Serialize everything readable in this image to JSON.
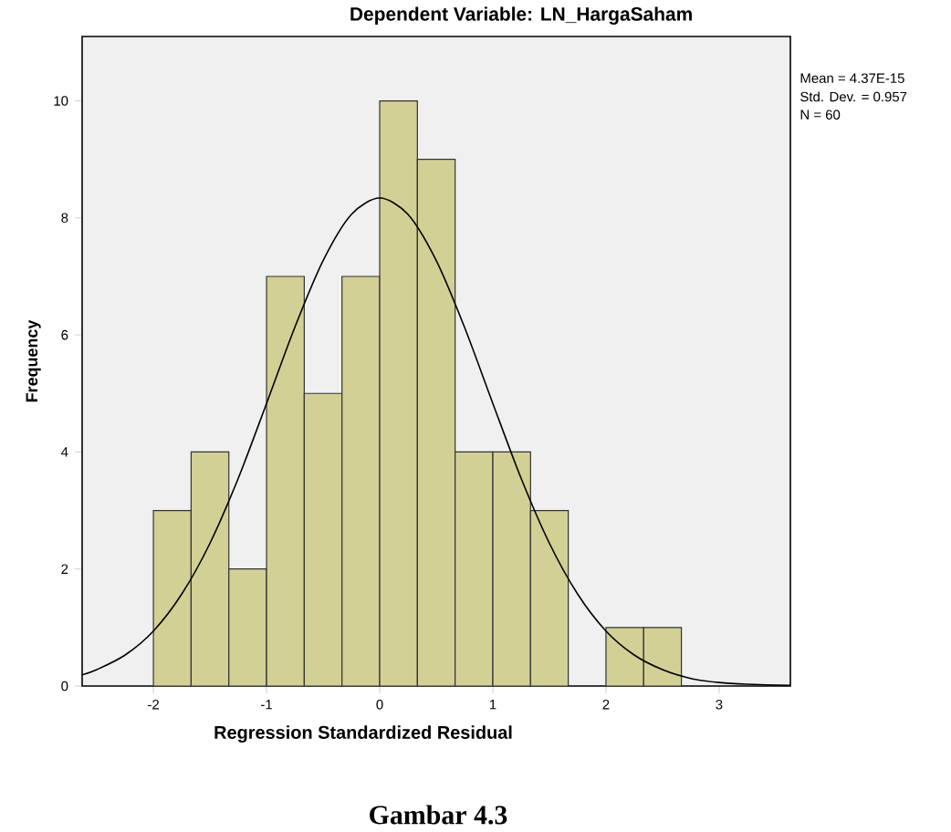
{
  "chart_data": {
    "type": "histogram",
    "title": "Dependent Variable: LN_HargaSaham",
    "xlabel": "Regression Standardized Residual",
    "ylabel": "Frequency",
    "bins": [
      -2,
      -1.6667,
      -1.3333,
      -1,
      -0.6667,
      -0.3333,
      0,
      0.3333,
      0.6667,
      1,
      1.3333,
      1.6667,
      2,
      2.3333,
      2.6667
    ],
    "values": [
      3,
      4,
      2,
      7,
      5,
      7,
      10,
      9,
      4,
      4,
      3,
      0,
      1,
      1
    ],
    "color": "#d3d096",
    "series": [
      {
        "type": "line",
        "color": "#000000",
        "marker": "none",
        "x": [
          -2.63,
          -2.5,
          -2.25,
          -2,
          -1.75,
          -1.5,
          -1.25,
          -1,
          -0.75,
          -0.5,
          -0.25,
          0,
          0.25,
          0.5,
          0.75,
          1,
          1.25,
          1.5,
          1.75,
          2,
          2.25,
          2.5,
          2.75,
          3,
          3.25,
          3.63
        ],
        "values": [
          0.19,
          0.28,
          0.53,
          0.94,
          1.57,
          2.44,
          3.55,
          4.83,
          6.13,
          7.27,
          8.06,
          8.34,
          8.06,
          7.27,
          6.13,
          4.83,
          3.55,
          2.44,
          1.57,
          0.94,
          0.53,
          0.28,
          0.13,
          0.06,
          0.03,
          0.01
        ]
      }
    ],
    "xlim": [
      -2.63,
      3.63
    ],
    "ylim": [
      0,
      11.1
    ],
    "xticks": [
      -2,
      -1,
      0,
      1,
      2,
      3
    ],
    "yticks": [
      0,
      2,
      4,
      6,
      8,
      10
    ],
    "annotations": [
      "Mean = 4.37E-15",
      "Std. Dev. = 0.957",
      "N = 60",
      "Gambar 4.3"
    ]
  }
}
